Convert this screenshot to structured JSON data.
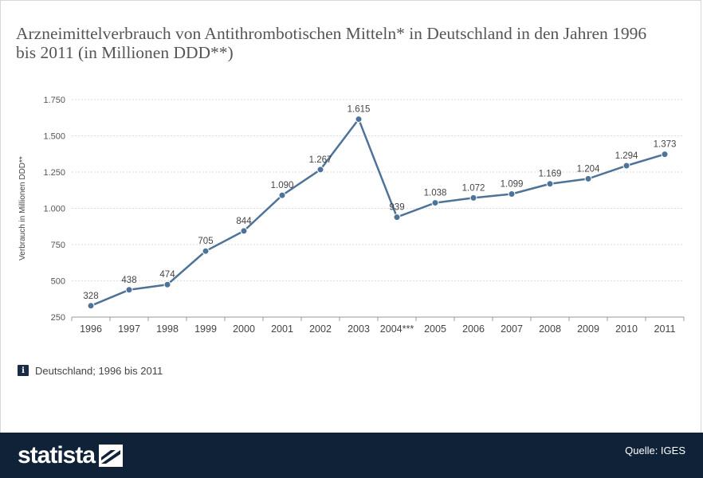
{
  "title": "Arzneimittelverbrauch von Antithrombotischen Mitteln* in Deutschland in den Jahren 1996 bis 2011 (in Millionen DDD**)",
  "info_text": "Deutschland; 1996 bis 2011",
  "info_icon": "info-icon",
  "footer": {
    "brand": "statista",
    "source": "Quelle: IGES"
  },
  "colors": {
    "line": "#4e7399",
    "footer": "#0f2237",
    "grid": "#dddddd"
  },
  "chart_data": {
    "type": "line",
    "title": "Arzneimittelverbrauch von Antithrombotischen Mitteln* in Deutschland in den Jahren 1996 bis 2011 (in Millionen DDD**)",
    "xlabel": "",
    "ylabel": "Verbrauch in Millionen DDD**",
    "categories": [
      "1996",
      "1997",
      "1998",
      "1999",
      "2000",
      "2001",
      "2002",
      "2003",
      "2004***",
      "2005",
      "2006",
      "2007",
      "2008",
      "2009",
      "2010",
      "2011"
    ],
    "values": [
      328,
      438,
      474,
      705,
      844,
      1090,
      1267,
      1615,
      939,
      1038,
      1072,
      1099,
      1169,
      1204,
      1294,
      1373
    ],
    "value_labels": [
      "328",
      "438",
      "474",
      "705",
      "844",
      "1.090",
      "1.267",
      "1.615",
      "939",
      "1.038",
      "1.072",
      "1.099",
      "1.169",
      "1.204",
      "1.294",
      "1.373"
    ],
    "ylim": [
      250,
      1750
    ],
    "yticks": [
      250,
      500,
      750,
      1000,
      1250,
      1500,
      1750
    ],
    "ytick_labels": [
      "250",
      "500",
      "750",
      "1.000",
      "1.250",
      "1.500",
      "1.750"
    ],
    "grid": true,
    "legend": "none"
  }
}
